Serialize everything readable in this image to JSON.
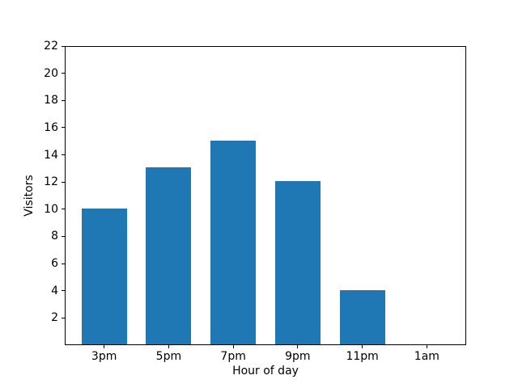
{
  "chart_data": {
    "type": "bar",
    "title": "",
    "categories": [
      "3pm",
      "5pm",
      "7pm",
      "9pm",
      "11pm",
      "1am"
    ],
    "values": [
      10,
      13,
      15,
      12,
      4,
      0
    ],
    "xlabel": "Hour of day",
    "ylabel": "Visitors",
    "ylim": [
      0,
      22
    ],
    "yticks": [
      2,
      4,
      6,
      8,
      10,
      12,
      14,
      16,
      18,
      20,
      22
    ],
    "xlim": [
      -0.61,
      5.61
    ],
    "bar_width_units": 0.7,
    "bar_color": "#1f77b4",
    "axis_color": "#000000",
    "text_color": "#000000",
    "background_color": "#ffffff",
    "grid": false,
    "legend_position": "none"
  }
}
